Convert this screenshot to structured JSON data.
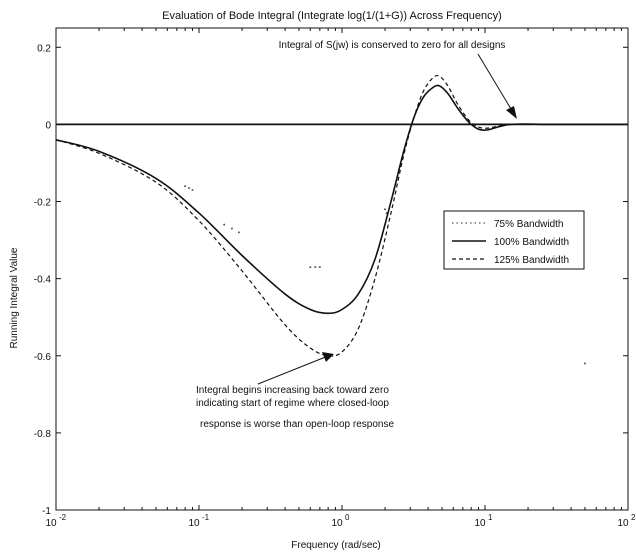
{
  "chart_data": {
    "type": "line",
    "title": "Evaluation of Bode Integral (Integrate log(1/(1+G)) Across Frequency)",
    "xlabel": "Frequency (rad/sec)",
    "ylabel": "Running Integral Value",
    "x_scale": "log",
    "xlim": [
      0.01,
      100
    ],
    "ylim": [
      -1,
      0.25
    ],
    "grid": false,
    "legend_position": "right",
    "x_ticks": [
      {
        "value": 0.01,
        "base": "10",
        "exp": "-2"
      },
      {
        "value": 0.1,
        "base": "10",
        "exp": "-1"
      },
      {
        "value": 1,
        "base": "10",
        "exp": "0"
      },
      {
        "value": 10,
        "base": "10",
        "exp": "1"
      },
      {
        "value": 100,
        "base": "10",
        "exp": "2"
      }
    ],
    "y_ticks": [
      {
        "value": 0.2,
        "label": "0.2"
      },
      {
        "value": 0,
        "label": "0"
      },
      {
        "value": -0.2,
        "label": "-0.2"
      },
      {
        "value": -0.4,
        "label": "-0.4"
      },
      {
        "value": -0.6,
        "label": "-0.6"
      },
      {
        "value": -0.8,
        "label": "-0.8"
      },
      {
        "value": -1,
        "label": "-1"
      }
    ],
    "series": [
      {
        "name": "75% Bandwidth",
        "style": "dotted",
        "color": "#555555",
        "x": [
          0.08,
          0.085,
          0.09,
          0.15,
          0.17,
          0.19,
          0.6,
          0.65,
          0.7,
          2.0,
          2.05,
          50
        ],
        "y": [
          -0.16,
          -0.165,
          -0.17,
          -0.26,
          -0.27,
          -0.28,
          -0.37,
          -0.37,
          -0.37,
          -0.22,
          -0.23,
          -0.62
        ]
      },
      {
        "name": "100% Bandwidth",
        "style": "solid",
        "color": "#111111",
        "x": [
          0.01,
          0.02,
          0.05,
          0.1,
          0.2,
          0.4,
          0.6,
          0.8,
          1.0,
          1.3,
          1.7,
          2.2,
          2.7,
          3.2,
          3.7,
          4.3,
          4.8,
          5.5,
          6.5,
          8,
          10,
          15,
          30,
          100
        ],
        "y": [
          -0.04,
          -0.07,
          -0.14,
          -0.23,
          -0.34,
          -0.44,
          -0.48,
          -0.49,
          -0.48,
          -0.44,
          -0.35,
          -0.2,
          -0.07,
          0.02,
          0.07,
          0.095,
          0.1,
          0.08,
          0.04,
          0.0,
          -0.015,
          0.0,
          0.0,
          0.0
        ]
      },
      {
        "name": "125% Bandwidth",
        "style": "dashed",
        "color": "#111111",
        "x": [
          0.01,
          0.02,
          0.05,
          0.1,
          0.2,
          0.4,
          0.6,
          0.8,
          1.0,
          1.3,
          1.7,
          2.2,
          2.7,
          3.2,
          3.7,
          4.3,
          4.8,
          5.5,
          6.5,
          8,
          10,
          15,
          30,
          100
        ],
        "y": [
          -0.04,
          -0.075,
          -0.15,
          -0.25,
          -0.38,
          -0.52,
          -0.58,
          -0.6,
          -0.59,
          -0.53,
          -0.4,
          -0.23,
          -0.08,
          0.02,
          0.085,
          0.12,
          0.125,
          0.1,
          0.05,
          0.005,
          -0.01,
          0.0,
          0.0,
          0.0
        ]
      },
      {
        "name": "",
        "style": "solid",
        "color": "#111111",
        "x": [
          0.01,
          100
        ],
        "y": [
          0,
          0
        ]
      }
    ],
    "annotations": [
      {
        "text": "Integral of S(jw) is conserved to zero for all designs"
      },
      {
        "lines": [
          "Integral begins increasing back toward zero",
          "indicating start of regime where closed-loop",
          "response is worse than open-loop response"
        ]
      }
    ]
  }
}
